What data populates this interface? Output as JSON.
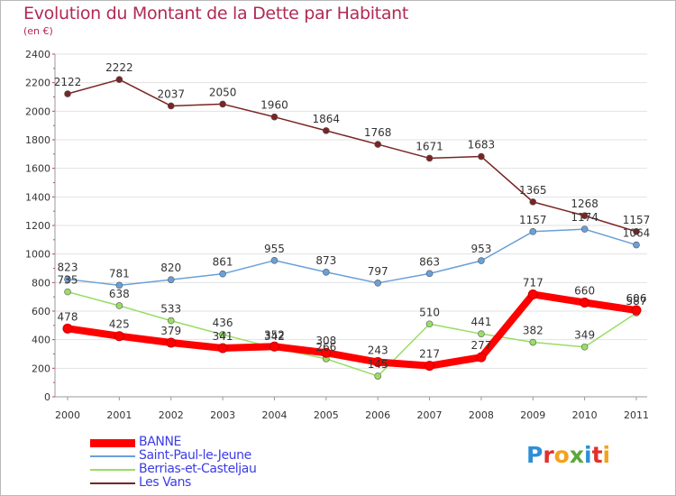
{
  "chart_data": {
    "type": "line",
    "title": "Evolution du Montant de la Dette par Habitant",
    "subtitle": "(en €)",
    "x": [
      "2000",
      "2001",
      "2002",
      "2003",
      "2004",
      "2005",
      "2006",
      "2007",
      "2008",
      "2009",
      "2010",
      "2011"
    ],
    "ylim": [
      0,
      2400
    ],
    "yticks": [
      0,
      200,
      400,
      600,
      800,
      1000,
      1200,
      1400,
      1600,
      1800,
      2000,
      2200,
      2400
    ],
    "grid": "horizontal",
    "legend_position": "bottom-left",
    "series": [
      {
        "name": "BANNE",
        "color": "#ff0000",
        "values": [
          478,
          425,
          379,
          341,
          352,
          308,
          243,
          217,
          277,
          717,
          660,
          606
        ],
        "labels": [
          "478",
          "425",
          "379",
          "341",
          "352",
          "308",
          "243",
          "217",
          "277",
          "717",
          "660",
          "606"
        ]
      },
      {
        "name": "Saint-Paul-le-Jeune",
        "color": "#6aa0d8",
        "values": [
          823,
          781,
          820,
          861,
          955,
          873,
          797,
          863,
          953,
          1157,
          1174,
          1064
        ],
        "labels": [
          "823",
          "781",
          "820",
          "861",
          "955",
          "873",
          "797",
          "863",
          "953",
          "1157",
          "1174",
          "1064"
        ]
      },
      {
        "name": "Berrias-et-Casteljau",
        "color": "#99dd66",
        "values": [
          735,
          638,
          533,
          436,
          342,
          266,
          145,
          510,
          441,
          382,
          349,
          587
        ],
        "labels": [
          "735",
          "638",
          "533",
          "436",
          "342",
          "266",
          "145",
          "510",
          "441",
          "382",
          "349",
          "587"
        ]
      },
      {
        "name": "Les Vans",
        "color": "#7a2424",
        "values": [
          2122,
          2222,
          2037,
          2050,
          1960,
          1864,
          1768,
          1671,
          1683,
          1365,
          1268,
          1157
        ],
        "labels": [
          "2122",
          "2222",
          "2037",
          "2050",
          "1960",
          "1864",
          "1768",
          "1671",
          "1683",
          "1365",
          "1268",
          "1157"
        ]
      }
    ]
  },
  "legend": {
    "items": [
      {
        "label": "BANNE",
        "color": "#ff0000"
      },
      {
        "label": "Saint-Paul-le-Jeune",
        "color": "#6aa0d8"
      },
      {
        "label": "Berrias-et-Casteljau",
        "color": "#99dd66"
      },
      {
        "label": "Les Vans",
        "color": "#7a2424"
      }
    ]
  },
  "logo": {
    "text": "Proxiti",
    "letter_colors": [
      "#2e8fd6",
      "#e0312b",
      "#f4a21c",
      "#5aa83c",
      "#2e8fd6",
      "#e0312b",
      "#f4a21c"
    ]
  }
}
